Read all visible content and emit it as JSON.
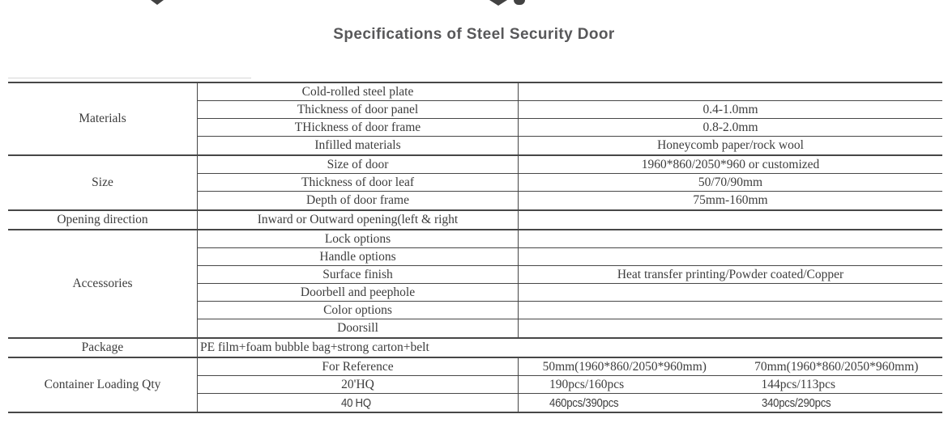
{
  "title": "Specifications of Steel Security Door",
  "colors": {
    "line": "#474747",
    "text": "#3d3d3d",
    "title_text": "#58585a",
    "background": "#ffffff"
  },
  "table": {
    "sections": [
      {
        "label": "Materials",
        "rows": [
          {
            "item": "Cold-rolled steel plate",
            "value": ""
          },
          {
            "item": "Thickness of door panel",
            "value": "0.4-1.0mm"
          },
          {
            "item": "THickness of door frame",
            "value": "0.8-2.0mm"
          },
          {
            "item": "Infilled materials",
            "value": "Honeycomb paper/rock wool"
          }
        ]
      },
      {
        "label": "Size",
        "rows": [
          {
            "item": "Size of door",
            "value": "1960*860/2050*960 or customized"
          },
          {
            "item": "Thickness of door leaf",
            "value": "50/70/90mm"
          },
          {
            "item": "Depth of door frame",
            "value": "75mm-160mm"
          }
        ]
      },
      {
        "label": "Opening direction",
        "rows": [
          {
            "item": "Inward or Outward opening(left & right",
            "value": ""
          }
        ]
      },
      {
        "label": "Accessories",
        "rows": [
          {
            "item": "Lock options",
            "value": ""
          },
          {
            "item": "Handle options",
            "value": ""
          },
          {
            "item": "Surface finish",
            "value": "Heat transfer printing/Powder coated/Copper"
          },
          {
            "item": "Doorbell and peephole",
            "value": ""
          },
          {
            "item": "Color options",
            "value": ""
          },
          {
            "item": "Doorsill",
            "value": ""
          }
        ]
      },
      {
        "label": "Package",
        "rows": [
          {
            "item": "PE film+foam bubble bag+strong carton+belt"
          }
        ]
      },
      {
        "label": "Container Loading Qty",
        "rows": [
          {
            "item": "For Reference",
            "value_left": "50mm(1960*860/2050*960mm)",
            "value_right": "70mm(1960*860/2050*960mm)"
          },
          {
            "item": "20'HQ",
            "value_left": "190pcs/160pcs",
            "value_right": "144pcs/113pcs"
          },
          {
            "item": "40 HQ",
            "value_left": "460pcs/390pcs",
            "value_right": "340pcs/290pcs"
          }
        ]
      }
    ]
  }
}
